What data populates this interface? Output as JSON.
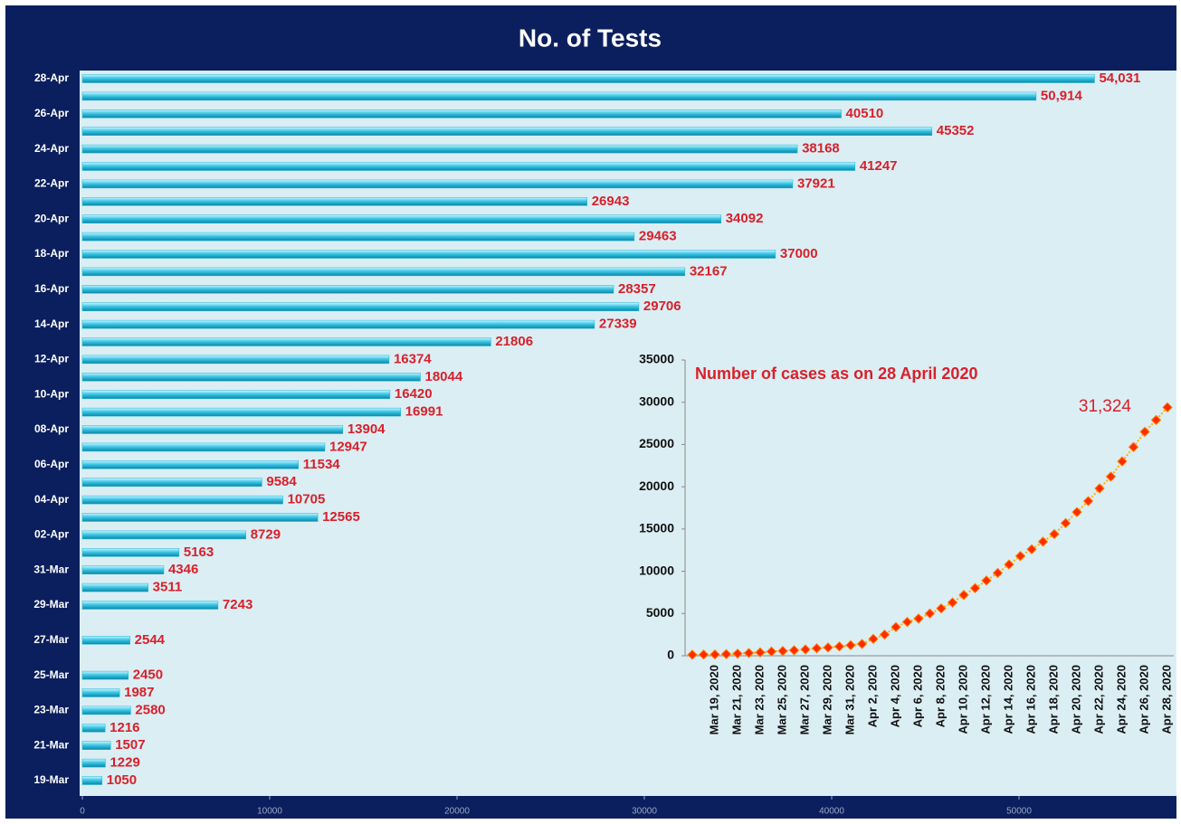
{
  "chart_data": [
    {
      "type": "hbar",
      "title": "No. of Tests",
      "categories": [
        "19-Mar",
        null,
        "21-Mar",
        null,
        "23-Mar",
        null,
        "25-Mar",
        null,
        "27-Mar",
        null,
        "29-Mar",
        null,
        "31-Mar",
        null,
        "02-Apr",
        null,
        "04-Apr",
        null,
        "06-Apr",
        null,
        "08-Apr",
        null,
        "10-Apr",
        null,
        "12-Apr",
        null,
        "14-Apr",
        null,
        "16-Apr",
        null,
        "18-Apr",
        null,
        "20-Apr",
        null,
        "22-Apr",
        null,
        "24-Apr",
        null,
        "26-Apr",
        null,
        "28-Apr"
      ],
      "values": [
        1050,
        1229,
        1507,
        1216,
        2580,
        1987,
        2450,
        null,
        2544,
        null,
        7243,
        3511,
        4346,
        5163,
        8729,
        12565,
        10705,
        9584,
        11534,
        12947,
        13904,
        16991,
        16420,
        18044,
        16374,
        21806,
        27339,
        29706,
        28357,
        32167,
        37000,
        29463,
        34092,
        26943,
        37921,
        41247,
        38168,
        45352,
        40510,
        50914,
        54031
      ],
      "value_labels": [
        "1050",
        "1229",
        "1507",
        "1216",
        "2580",
        "1987",
        "2450",
        null,
        "2544",
        null,
        "7243",
        "3511",
        "4346",
        "5163",
        "8729",
        "12565",
        "10705",
        "9584",
        "11534",
        "12947",
        "13904",
        "16991",
        "16420",
        "18044",
        "16374",
        "21806",
        "27339",
        "29706",
        "28357",
        "32167",
        "37000",
        "29463",
        "34092",
        "26943",
        "37921",
        "41247",
        "38168",
        "45352",
        "40510",
        "50,914",
        "54,031"
      ],
      "xlim": [
        0,
        58000
      ],
      "xticks": [
        0,
        10000,
        20000,
        30000,
        40000,
        50000
      ],
      "color": "#1fb3d4"
    },
    {
      "type": "line",
      "title": "Number of cases as on 28 April 2020",
      "categories": [
        null,
        null,
        "Mar 19, 2020",
        null,
        "Mar 21, 2020",
        null,
        "Mar 23, 2020",
        null,
        "Mar 25, 2020",
        null,
        "Mar 27, 2020",
        null,
        "Mar 29, 2020",
        null,
        "Mar 31, 2020",
        null,
        "Apr 2, 2020",
        null,
        "Apr 4, 2020",
        null,
        "Apr 6, 2020",
        null,
        "Apr 8, 2020",
        null,
        "Apr 10, 2020",
        null,
        "Apr 12, 2020",
        null,
        "Apr 14, 2020",
        null,
        "Apr 16, 2020",
        null,
        "Apr 18, 2020",
        null,
        "Apr 20, 2020",
        null,
        "Apr 22, 2020",
        null,
        "Apr 24, 2020",
        null,
        "Apr 26, 2020",
        null,
        "Apr 28, 2020"
      ],
      "values": [
        120,
        137,
        150,
        195,
        250,
        330,
        400,
        500,
        560,
        650,
        750,
        880,
        980,
        1100,
        1250,
        1400,
        2000,
        2500,
        3400,
        4000,
        4400,
        5000,
        5600,
        6300,
        7200,
        8000,
        8900,
        9800,
        10800,
        11800,
        12600,
        13500,
        14400,
        15700,
        17000,
        18300,
        19800,
        21200,
        23000,
        24700,
        26500,
        27900,
        29400
      ],
      "annotation": "31,324",
      "ylim": [
        0,
        35000
      ],
      "yticks": [
        0,
        5000,
        10000,
        15000,
        20000,
        25000,
        30000,
        35000
      ],
      "color": "#ff2a00"
    }
  ]
}
